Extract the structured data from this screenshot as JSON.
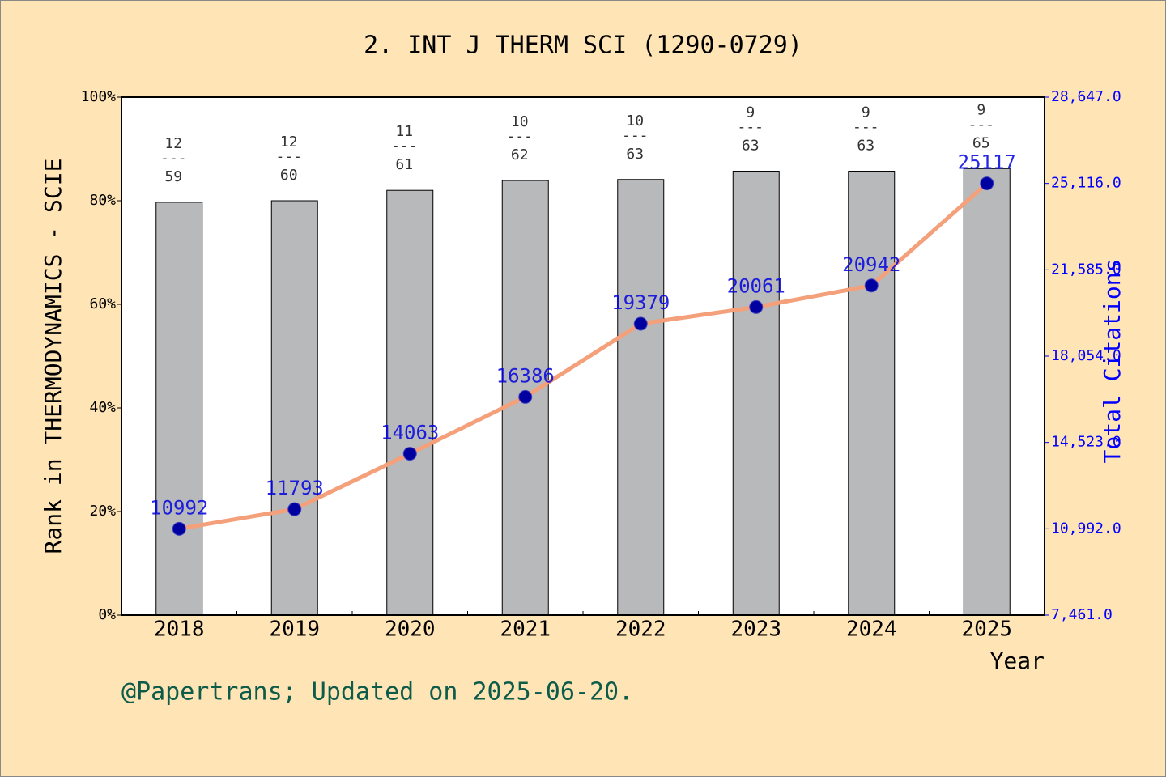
{
  "chart_data": {
    "type": "bar-line",
    "title": "2. INT J THERM SCI (1290-0729)",
    "footer": "@Papertrans; Updated on 2025-06-20.",
    "x_label": "Year",
    "y_label": "Rank in THERMODYNAMICS - SCIE",
    "y2_label": "Total Citations",
    "categories": [
      "2018",
      "2019",
      "2020",
      "2021",
      "2022",
      "2023",
      "2024",
      "2025"
    ],
    "series": [
      {
        "name": "Rank percentile",
        "type": "bar",
        "color": "#b8b9bb",
        "values": [
          79.7,
          80.0,
          82.0,
          83.9,
          84.1,
          85.7,
          85.7,
          86.2
        ]
      },
      {
        "name": "Total Citations",
        "type": "line",
        "axis": "y2",
        "color": "#f4a07a",
        "marker_color": "#0000a0",
        "values": [
          10992,
          11793,
          14063,
          16386,
          19379,
          20061,
          20942,
          25117
        ]
      }
    ],
    "bar_annotations": [
      {
        "rank": "12",
        "sep": "---",
        "total": "59"
      },
      {
        "rank": "12",
        "sep": "---",
        "total": "60"
      },
      {
        "rank": "11",
        "sep": "---",
        "total": "61"
      },
      {
        "rank": "10",
        "sep": "---",
        "total": "62"
      },
      {
        "rank": "10",
        "sep": "---",
        "total": "63"
      },
      {
        "rank": "9",
        "sep": "---",
        "total": "63"
      },
      {
        "rank": "9",
        "sep": "---",
        "total": "63"
      },
      {
        "rank": "9",
        "sep": "---",
        "total": "65"
      }
    ],
    "ylim": [
      0,
      100
    ],
    "yticks": [
      {
        "value": 0,
        "label": "0%"
      },
      {
        "value": 20,
        "label": "20%"
      },
      {
        "value": 40,
        "label": "40%"
      },
      {
        "value": 60,
        "label": "60%"
      },
      {
        "value": 80,
        "label": "80%"
      },
      {
        "value": 100,
        "label": "100%"
      }
    ],
    "y2lim": [
      7461,
      28647
    ],
    "y2ticks": [
      {
        "value": 7461,
        "label": "7,461.0"
      },
      {
        "value": 10992,
        "label": "10,992.0"
      },
      {
        "value": 14523,
        "label": "14,523.0"
      },
      {
        "value": 18054,
        "label": "18,054.0"
      },
      {
        "value": 21585,
        "label": "21,585.0"
      },
      {
        "value": 25116,
        "label": "25,116.0"
      },
      {
        "value": 28647,
        "label": "28,647.0"
      }
    ]
  }
}
